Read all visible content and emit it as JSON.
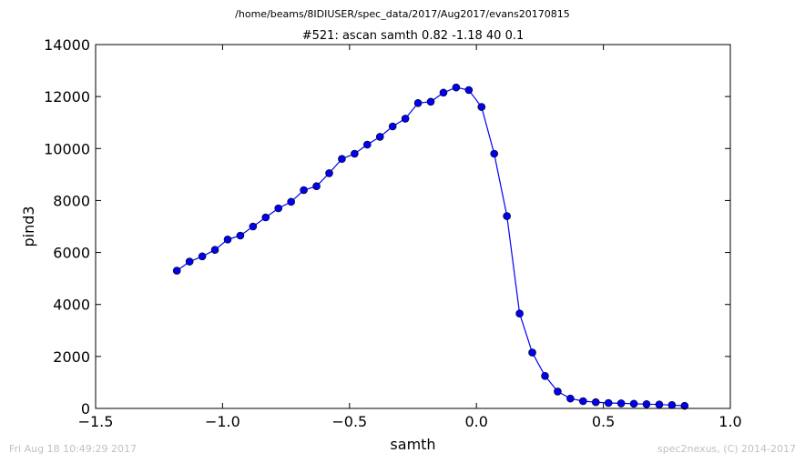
{
  "suptitle": "/home/beams/8IDIUSER/spec_data/2017/Aug2017/evans20170815",
  "timestamp": "Fri Aug 18 10:49:29 2017",
  "credit": "spec2nexus, (C) 2014-2017",
  "chart_data": {
    "type": "line",
    "title": "#521: ascan  samth 0.82 -1.18  40 0.1",
    "xlabel": "samth",
    "ylabel": "pind3",
    "xlim": [
      -1.5,
      1.0
    ],
    "ylim": [
      0,
      14000
    ],
    "xticks": [
      -1.5,
      -1.0,
      -0.5,
      0.0,
      0.5,
      1.0
    ],
    "xtick_labels": [
      "−1.5",
      "−1.0",
      "−0.5",
      "0.0",
      "0.5",
      "1.0"
    ],
    "yticks": [
      0,
      2000,
      4000,
      6000,
      8000,
      10000,
      12000,
      14000
    ],
    "ytick_labels": [
      "0",
      "2000",
      "4000",
      "6000",
      "8000",
      "10000",
      "12000",
      "14000"
    ],
    "grid": false,
    "line_color": "#0000ff",
    "marker_color": "#0000ee",
    "series": [
      {
        "x": [
          -1.18,
          -1.13,
          -1.08,
          -1.03,
          -0.98,
          -0.93,
          -0.88,
          -0.83,
          -0.78,
          -0.73,
          -0.68,
          -0.63,
          -0.58,
          -0.53,
          -0.48,
          -0.43,
          -0.38,
          -0.33,
          -0.28,
          -0.23,
          -0.18,
          -0.13,
          -0.08,
          -0.03,
          0.02,
          0.07,
          0.12,
          0.17,
          0.22,
          0.27,
          0.32,
          0.37,
          0.42,
          0.47,
          0.52,
          0.57,
          0.62,
          0.67,
          0.72,
          0.77,
          0.82
        ],
        "y": [
          5300,
          5650,
          5850,
          6100,
          6500,
          6650,
          7000,
          7350,
          7700,
          7950,
          8400,
          8550,
          9050,
          9600,
          9800,
          10150,
          10450,
          10850,
          11150,
          11750,
          11800,
          12150,
          12350,
          12250,
          11600,
          9800,
          7400,
          3650,
          2150,
          1250,
          650,
          380,
          280,
          240,
          210,
          195,
          180,
          165,
          150,
          130,
          100
        ]
      }
    ]
  }
}
